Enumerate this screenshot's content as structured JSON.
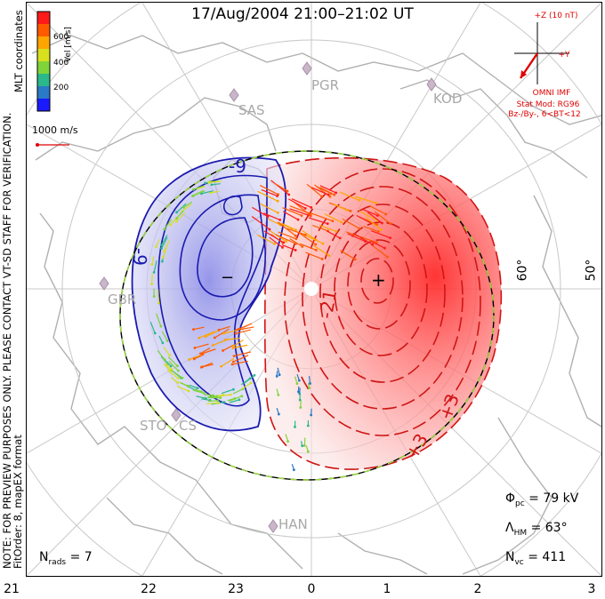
{
  "title": "17/Aug/2004 21:00–21:02 UT",
  "side_note": {
    "line1": "NOTE: FOR PREVIEW PURPOSES ONLY. PLEASE CONTACT VT-SD STAFF FOR VERIFICATION.",
    "line2": "FitOrder: 8, mapEX format",
    "coords": "MLT coordinates"
  },
  "colorbar": {
    "label": "Vel [m/s]",
    "ticks": [
      "600",
      "400",
      "200"
    ],
    "colors": [
      "#ff1a1a",
      "#ff5a00",
      "#ffa500",
      "#d6e01e",
      "#7fd43a",
      "#2bb88a",
      "#2a7ac6",
      "#1a1aff"
    ]
  },
  "velocity_scale": {
    "label": "1000 m/s",
    "color": "#e00000"
  },
  "imf": {
    "axis_z": "+Z (10 nT)",
    "axis_y": "+Y",
    "label": "OMNI IMF",
    "stat_mod": "Stat Mod: RG96",
    "condition": "Bz-/By-, 6<BT<12",
    "color": "#e00000"
  },
  "sites": [
    "PGR",
    "KOD",
    "SAS",
    "GBR",
    "STO",
    "HAN",
    "CS"
  ],
  "latitude_labels": [
    "60°",
    "50°"
  ],
  "contour_labels": [
    "-9",
    "-9",
    "-21",
    "+3",
    "+3"
  ],
  "mlt_labels": [
    "21",
    "22",
    "23",
    "0",
    "1",
    "2",
    "3"
  ],
  "stats": {
    "phi_pc": {
      "symbol": "Φ",
      "sub": "pc",
      "value": "= 79 kV"
    },
    "lambda_hm": {
      "symbol": "Λ",
      "sub": "HM",
      "value": "= 63°"
    },
    "n_vc": {
      "symbol": "N",
      "sub": "vc",
      "value": "= 411"
    },
    "n_rads": {
      "symbol": "N",
      "sub": "rads",
      "value": "= 7"
    }
  },
  "potential_extrema": {
    "min_marker": "−",
    "max_marker": "+"
  }
}
